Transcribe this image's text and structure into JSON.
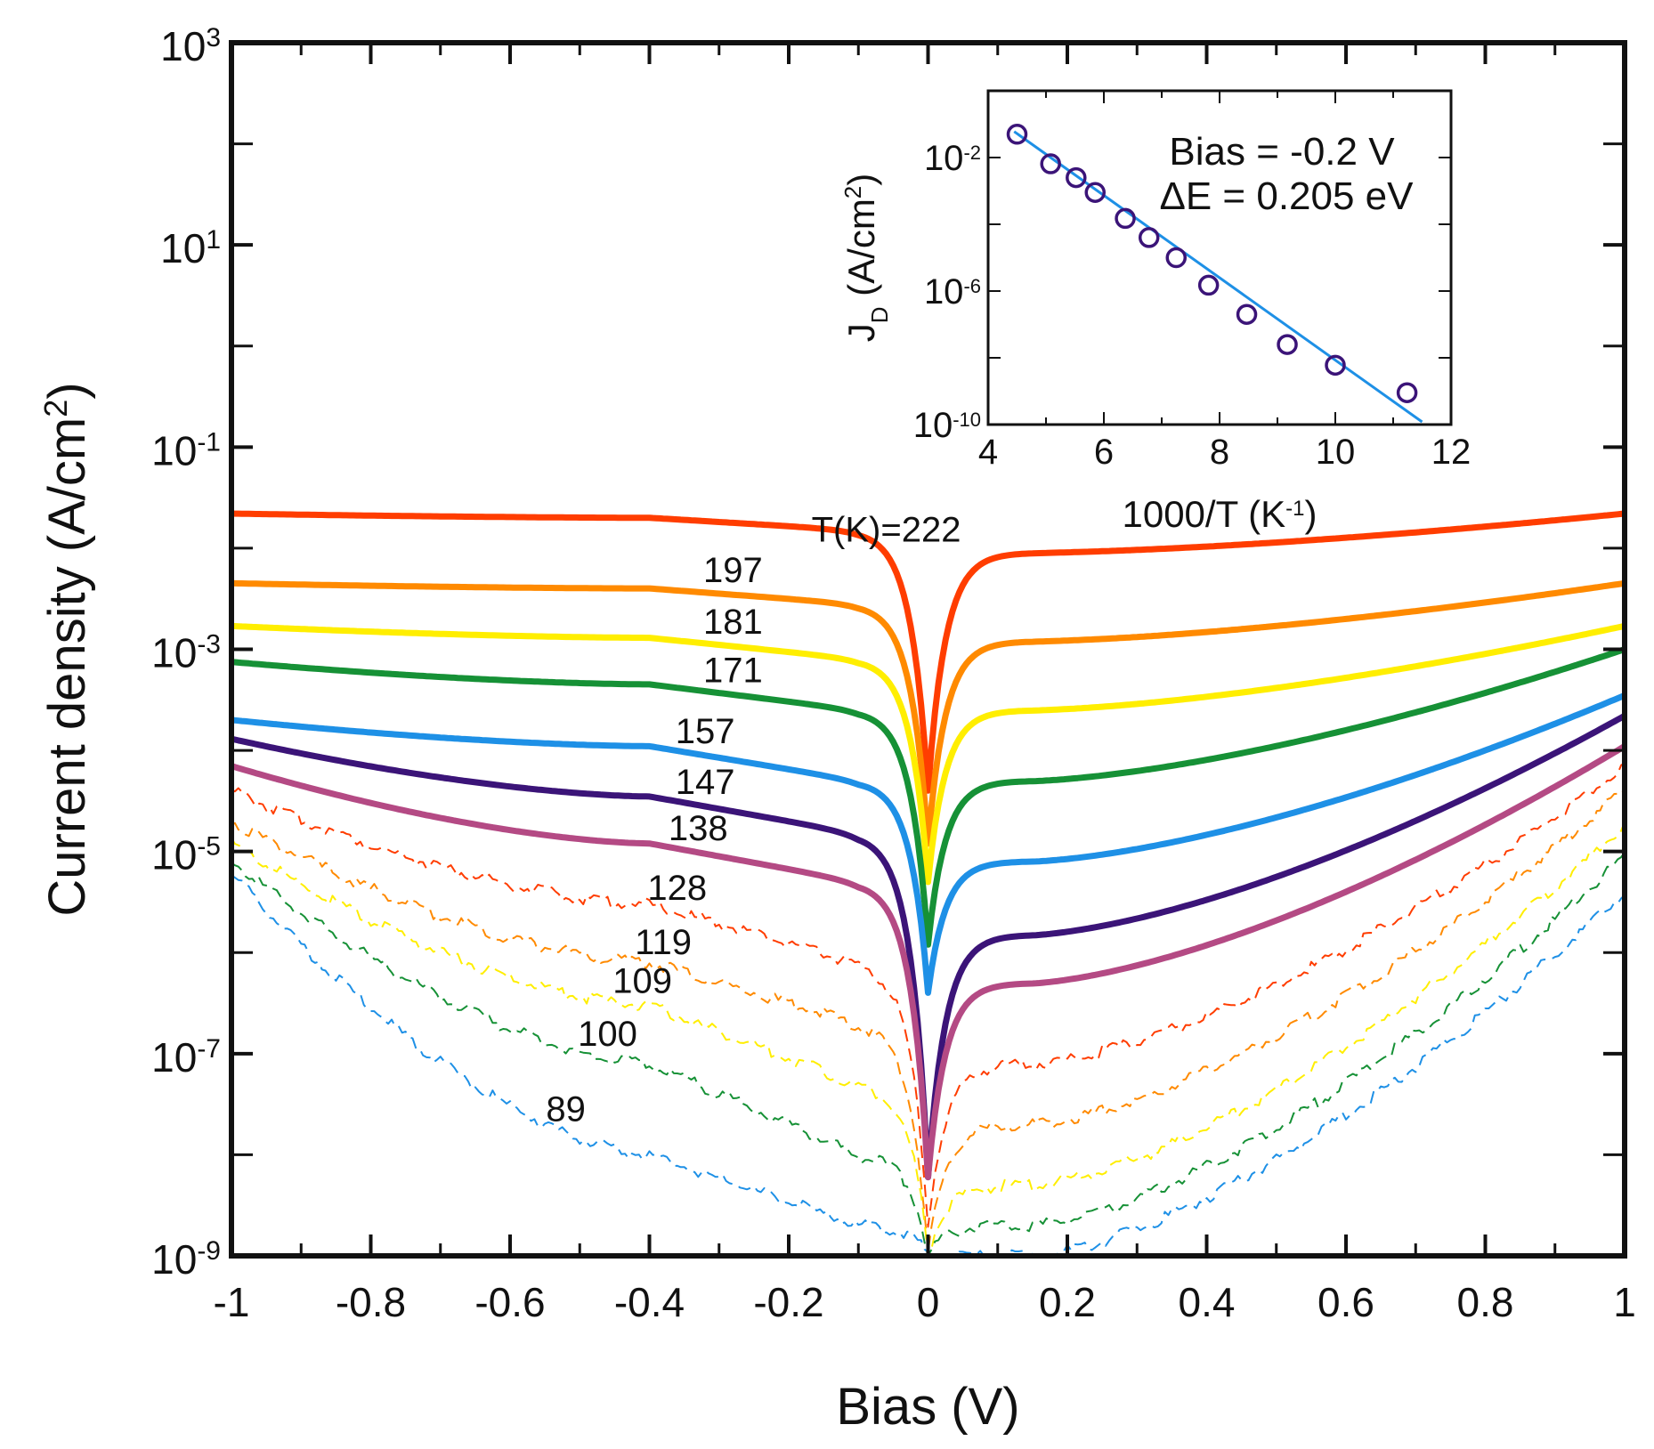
{
  "chart_data": {
    "main": {
      "type": "line",
      "title": "",
      "xlabel": "Bias (V)",
      "ylabel_main": "Current density (A/cm",
      "ylabel_sup": "2",
      "ylabel_close": ")",
      "xscale": "linear",
      "yscale": "log",
      "xlim": [
        -1,
        1
      ],
      "ylim": [
        1e-09,
        1000
      ],
      "x_ticks": [
        -1,
        -0.8,
        -0.6,
        -0.4,
        -0.2,
        0,
        0.2,
        0.4,
        0.6,
        0.8,
        1
      ],
      "x_tick_labels": [
        "-1",
        "-0.8",
        "-0.6",
        "-0.4",
        "-0.2",
        "0",
        "0.2",
        "0.4",
        "0.6",
        "0.8",
        "1"
      ],
      "y_tick_labels": [
        {
          "exp": -9,
          "base": "10",
          "sup": "-9"
        },
        {
          "exp": -7,
          "base": "10",
          "sup": "-7"
        },
        {
          "exp": -5,
          "base": "10",
          "sup": "-5"
        },
        {
          "exp": -3,
          "base": "10",
          "sup": "-3"
        },
        {
          "exp": -1,
          "base": "10",
          "sup": "-1"
        },
        {
          "exp": 1,
          "base": "10",
          "sup": "1"
        },
        {
          "exp": 3,
          "base": "10",
          "sup": "3"
        }
      ],
      "series": [
        {
          "name": "222 K",
          "label": "T(K)=222",
          "color": "#ff3d00",
          "style": "solid",
          "left": 0.022,
          "mid": 0.02,
          "near": 0.015,
          "min": 4e-05,
          "pos": 0.009,
          "right": 0.022
        },
        {
          "name": "197 K",
          "label": "197",
          "color": "#ff8a00",
          "style": "solid",
          "left": 0.0045,
          "mid": 0.004,
          "near": 0.0028,
          "min": 1.2e-05,
          "pos": 0.0012,
          "right": 0.0045
        },
        {
          "name": "181 K",
          "label": "181",
          "color": "#ffee00",
          "style": "solid",
          "left": 0.0017,
          "mid": 0.0013,
          "near": 0.0008,
          "min": 5e-06,
          "pos": 0.00025,
          "right": 0.0017
        },
        {
          "name": "171 K",
          "label": "171",
          "color": "#169136",
          "style": "solid",
          "left": 0.00075,
          "mid": 0.00045,
          "near": 0.00025,
          "min": 1.2e-06,
          "pos": 5e-05,
          "right": 0.001
        },
        {
          "name": "157 K",
          "label": "157",
          "color": "#1e90e6",
          "style": "solid",
          "left": 0.0002,
          "mid": 0.00011,
          "near": 5e-05,
          "min": 4e-07,
          "pos": 8e-06,
          "right": 0.00035
        },
        {
          "name": "147 K",
          "label": "147",
          "color": "#3b1478",
          "style": "solid",
          "left": 0.00013,
          "mid": 3.5e-05,
          "near": 1.5e-05,
          "min": 6e-09,
          "pos": 1.5e-06,
          "right": 0.00022
        },
        {
          "name": "138 K",
          "label": "138",
          "color": "#b44a84",
          "style": "solid",
          "left": 7e-05,
          "mid": 1.2e-05,
          "near": 5e-06,
          "min": 6e-09,
          "pos": 5e-07,
          "right": 0.00011
        },
        {
          "name": "128 K",
          "label": "128",
          "color": "#ff3d00",
          "style": "dashed",
          "left": 4e-05,
          "mid": 3e-06,
          "near": 8e-07,
          "min": 2e-09,
          "pos": 8e-08,
          "right": 7e-05
        },
        {
          "name": "119 K",
          "label": "119",
          "color": "#ff8a00",
          "style": "dashed",
          "left": 2e-05,
          "mid": 8e-07,
          "near": 2e-07,
          "min": 1e-09,
          "pos": 2e-08,
          "right": 4e-05
        },
        {
          "name": "109 K",
          "label": "109",
          "color": "#ffee00",
          "style": "dashed",
          "left": 1.2e-05,
          "mid": 3e-07,
          "near": 5e-08,
          "min": 1e-09,
          "pos": 5e-09,
          "right": 1.8e-05
        },
        {
          "name": "100 K",
          "label": "100",
          "color": "#169136",
          "style": "dashed",
          "left": 8e-06,
          "mid": 8e-08,
          "near": 1e-08,
          "min": 1e-09,
          "pos": 2e-09,
          "right": 9e-06
        },
        {
          "name": "89 K",
          "label": "89",
          "color": "#1e90e6",
          "style": "dashed",
          "left": 6e-06,
          "mid": 1e-08,
          "near": 2e-09,
          "min": 1e-09,
          "pos": 1e-09,
          "right": 4e-06
        }
      ]
    },
    "inset": {
      "type": "scatter",
      "xlabel_main": "1000/T (K",
      "xlabel_sup": "-1",
      "xlabel_close": ")",
      "ylabel_main": "J",
      "ylabel_sub": "D",
      "ylabel_rest": " (A/cm",
      "ylabel_sup": "2",
      "ylabel_close": ")",
      "xlim": [
        4,
        12
      ],
      "ylim": [
        1e-10,
        1
      ],
      "yscale": "log",
      "x_ticks": [
        4,
        6,
        8,
        10,
        12
      ],
      "x_tick_labels": [
        "4",
        "6",
        "8",
        "10",
        "12"
      ],
      "y_tick_labels": [
        {
          "exp": -2,
          "base": "10",
          "sup": "-2"
        },
        {
          "exp": -6,
          "base": "10",
          "sup": "-6"
        },
        {
          "exp": -10,
          "base": "10",
          "sup": "-10"
        }
      ],
      "annotation_1": "Bias = -0.2 V",
      "annotation_2": "ΔE = 0.205 eV",
      "marker_color": "#3b1478",
      "fit_color": "#1e90e6",
      "points": [
        {
          "x": 4.5,
          "y": 0.05
        },
        {
          "x": 5.08,
          "y": 0.0065
        },
        {
          "x": 5.52,
          "y": 0.0025
        },
        {
          "x": 5.85,
          "y": 0.0009
        },
        {
          "x": 6.37,
          "y": 0.00015
        },
        {
          "x": 6.78,
          "y": 4e-05
        },
        {
          "x": 7.25,
          "y": 1e-05
        },
        {
          "x": 7.81,
          "y": 1.5e-06
        },
        {
          "x": 8.47,
          "y": 2e-07
        },
        {
          "x": 9.17,
          "y": 2.5e-08
        },
        {
          "x": 10.0,
          "y": 6e-09
        },
        {
          "x": 11.24,
          "y": 9e-10
        }
      ],
      "fit_line": {
        "x": [
          4.45,
          11.5
        ],
        "y": [
          0.06,
          1.2e-10
        ]
      }
    }
  }
}
